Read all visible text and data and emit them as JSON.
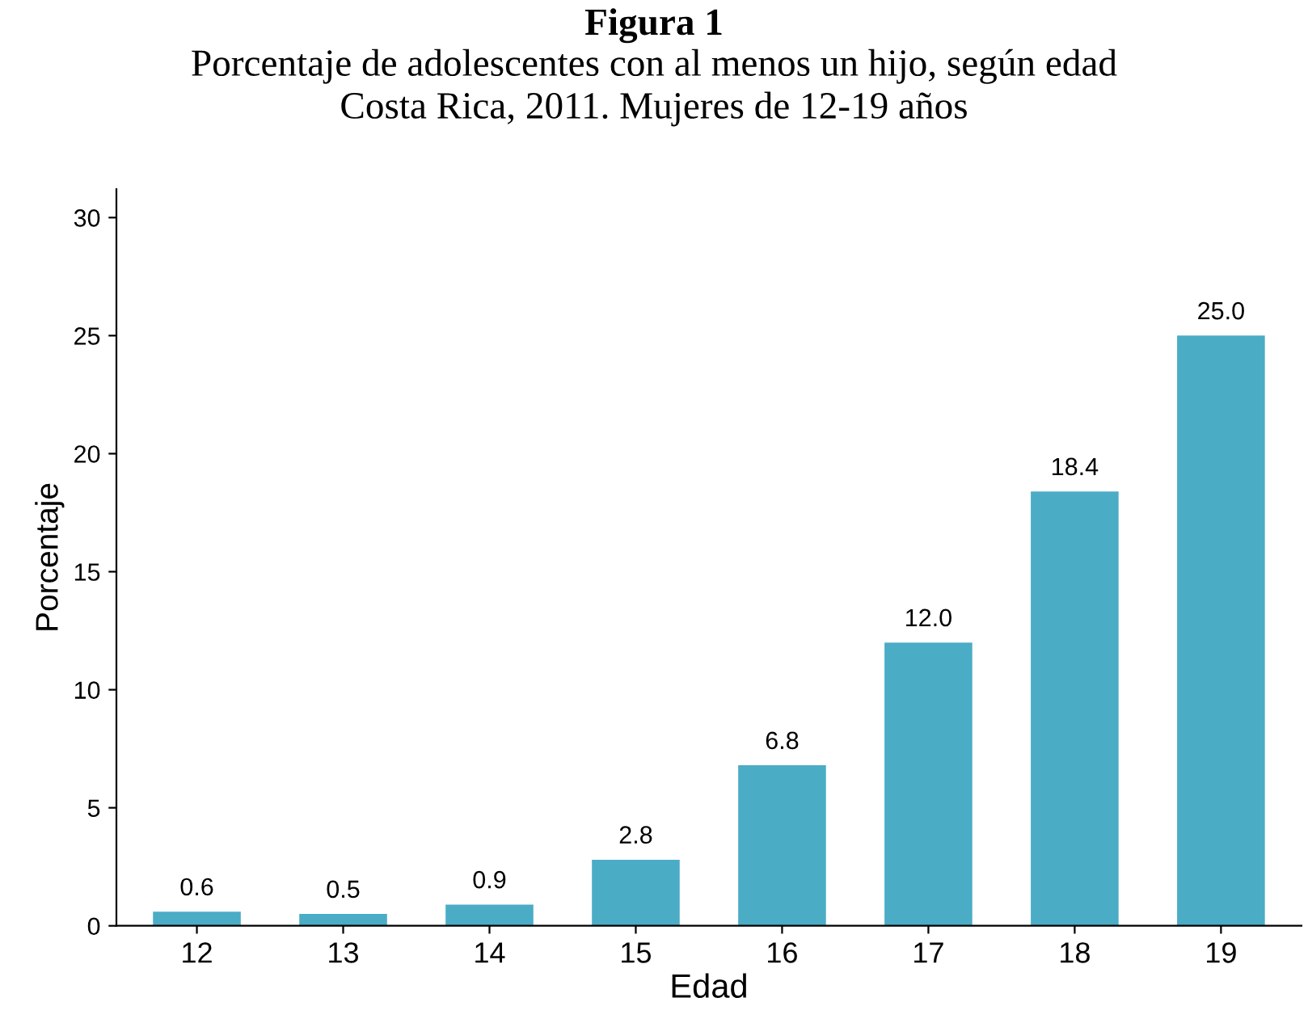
{
  "chart_data": {
    "type": "bar",
    "title": "Figura 1",
    "subtitle": "Porcentaje de adolescentes con al menos un hijo, según edad\nCosta Rica, 2011. Mujeres de 12-19 años",
    "xlabel": "Edad",
    "ylabel": "Porcentaje",
    "categories": [
      "12",
      "13",
      "14",
      "15",
      "16",
      "17",
      "18",
      "19"
    ],
    "values": [
      0.6,
      0.5,
      0.9,
      2.8,
      6.8,
      12.0,
      18.4,
      25.0
    ],
    "value_labels": [
      "0.6",
      "0.5",
      "0.9",
      "2.8",
      "6.8",
      "12.0",
      "18.4",
      "25.0"
    ],
    "color": "#4bacc6",
    "ylim": [
      0,
      31.2
    ],
    "yticks": [
      0,
      5,
      10,
      15,
      20,
      25,
      30
    ],
    "grid": false
  }
}
